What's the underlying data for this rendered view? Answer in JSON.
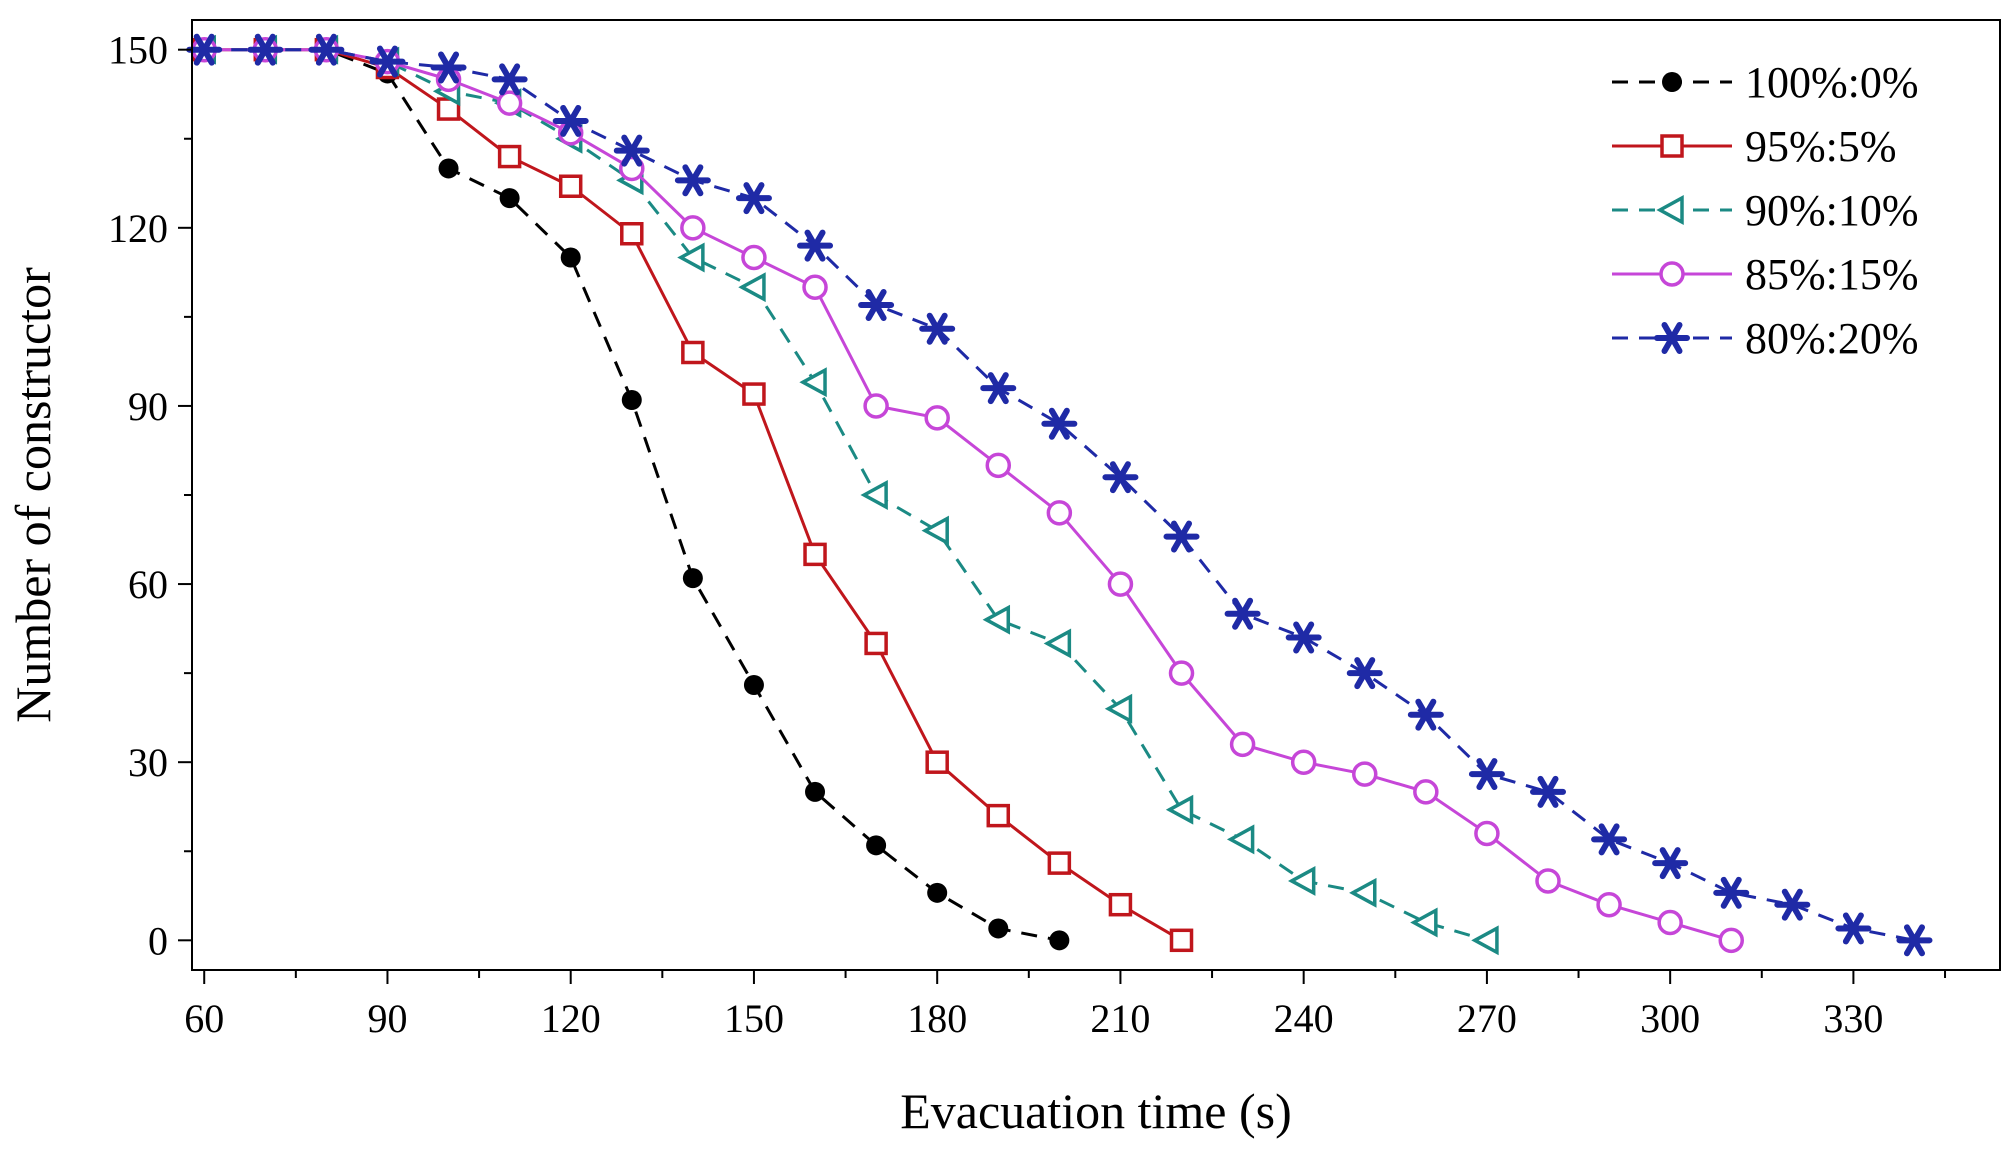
{
  "chart_data": {
    "type": "line",
    "title": "",
    "xlabel": "Evacuation time (s)",
    "ylabel": "Number of constructor",
    "xlim": [
      58,
      354
    ],
    "ylim": [
      -5,
      155
    ],
    "xticks": [
      60,
      90,
      120,
      150,
      180,
      210,
      240,
      270,
      300,
      330
    ],
    "yticks": [
      0,
      30,
      60,
      90,
      120,
      150
    ],
    "grid": false,
    "legend_position": "top-right",
    "series": [
      {
        "name": "100%:0%",
        "color": "#000000",
        "dash": "dashed",
        "marker": "filled-circle",
        "x": [
          60,
          70,
          80,
          90,
          100,
          110,
          120,
          130,
          140,
          150,
          160,
          170,
          180,
          190,
          200
        ],
        "y": [
          150,
          150,
          150,
          146,
          130,
          125,
          115,
          91,
          61,
          43,
          25,
          16,
          8,
          2,
          0
        ]
      },
      {
        "name": "95%:5%",
        "color": "#c0161c",
        "dash": "solid",
        "marker": "open-square",
        "x": [
          60,
          70,
          80,
          90,
          100,
          110,
          120,
          130,
          140,
          150,
          160,
          170,
          180,
          190,
          200,
          210,
          220
        ],
        "y": [
          150,
          150,
          150,
          147,
          140,
          132,
          127,
          119,
          99,
          92,
          65,
          50,
          30,
          21,
          13,
          6,
          0
        ]
      },
      {
        "name": "90%:10%",
        "color": "#1b8a84",
        "dash": "dashed",
        "marker": "open-triangle-left",
        "x": [
          60,
          70,
          80,
          90,
          100,
          110,
          120,
          130,
          140,
          150,
          160,
          170,
          180,
          190,
          200,
          210,
          220,
          230,
          240,
          250,
          260,
          270
        ],
        "y": [
          150,
          150,
          150,
          148,
          143,
          141,
          135,
          128,
          115,
          110,
          94,
          75,
          69,
          54,
          50,
          39,
          22,
          17,
          10,
          8,
          3,
          0
        ]
      },
      {
        "name": "85%:15%",
        "color": "#c646d8",
        "dash": "solid",
        "marker": "open-circle",
        "x": [
          60,
          70,
          80,
          90,
          100,
          110,
          120,
          130,
          140,
          150,
          160,
          170,
          180,
          190,
          200,
          210,
          220,
          230,
          240,
          250,
          260,
          270,
          280,
          290,
          300,
          310
        ],
        "y": [
          150,
          150,
          150,
          148,
          145,
          141,
          136,
          130,
          120,
          115,
          110,
          90,
          88,
          80,
          72,
          60,
          45,
          33,
          30,
          28,
          25,
          18,
          10,
          6,
          3,
          0
        ]
      },
      {
        "name": "80%:20%",
        "color": "#1f2aa6",
        "dash": "dashed",
        "marker": "asterisk",
        "x": [
          60,
          70,
          80,
          90,
          100,
          110,
          120,
          130,
          140,
          150,
          160,
          170,
          180,
          190,
          200,
          210,
          220,
          230,
          240,
          250,
          260,
          270,
          280,
          290,
          300,
          310,
          320,
          330,
          340
        ],
        "y": [
          150,
          150,
          150,
          148,
          147,
          145,
          138,
          133,
          128,
          125,
          117,
          107,
          103,
          93,
          87,
          78,
          68,
          55,
          51,
          45,
          38,
          28,
          25,
          17,
          13,
          8,
          6,
          2,
          0
        ]
      }
    ]
  }
}
